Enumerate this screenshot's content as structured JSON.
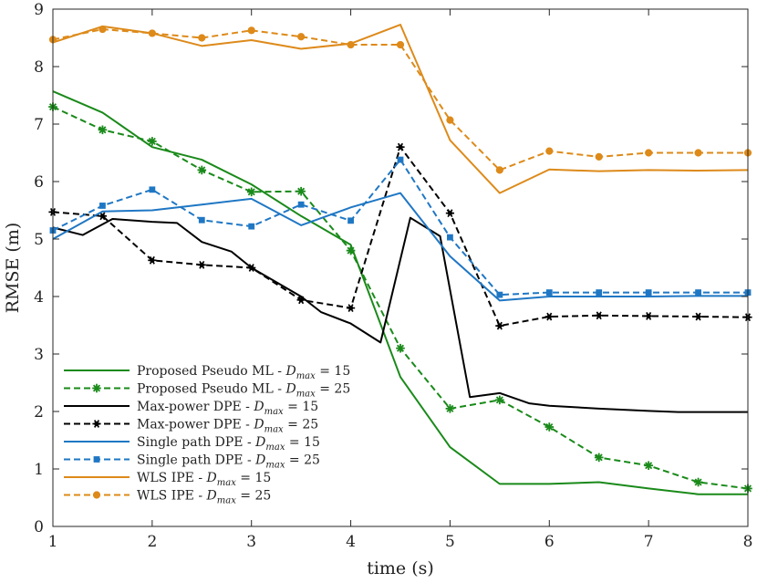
{
  "chart_data": {
    "type": "line",
    "title": "",
    "xlabel": "time (s)",
    "ylabel": "RMSE (m)",
    "xlim": [
      1,
      8
    ],
    "ylim": [
      0,
      9
    ],
    "xticks": [
      "1",
      "2",
      "3",
      "4",
      "5",
      "6",
      "7",
      "8"
    ],
    "yticks": [
      "0",
      "1",
      "2",
      "3",
      "4",
      "5",
      "6",
      "7",
      "8",
      "9"
    ],
    "grid": false,
    "legend_position": "bottom-left",
    "series": [
      {
        "name_prefix": "Proposed Pseudo ML - ",
        "name_suffix": " = 15",
        "dmax_value": "15",
        "color": "#1a8a1a",
        "line_style": "solid",
        "marker": "none",
        "x": [
          1,
          1.5,
          2,
          2.5,
          3,
          3.5,
          4,
          4.5,
          5,
          5.5,
          6,
          6.5,
          7,
          7.5,
          8
        ],
        "y": [
          7.57,
          7.2,
          6.6,
          6.38,
          5.95,
          5.4,
          4.9,
          2.6,
          1.38,
          0.74,
          0.74,
          0.77,
          0.66,
          0.56,
          0.56
        ]
      },
      {
        "name_prefix": "Proposed Pseudo ML - ",
        "name_suffix": " = 25",
        "dmax_value": "25",
        "color": "#1a8a1a",
        "line_style": "dashed",
        "marker": "asterisk",
        "x": [
          1,
          1.5,
          2,
          2.5,
          3,
          3.5,
          4,
          4.5,
          5,
          5.5,
          6,
          6.5,
          7,
          7.5,
          8
        ],
        "y": [
          7.3,
          6.9,
          6.7,
          6.2,
          5.82,
          5.83,
          4.8,
          3.1,
          2.05,
          2.2,
          1.73,
          1.2,
          1.06,
          0.77,
          0.66
        ]
      },
      {
        "name_prefix": "Max-power DPE - ",
        "name_suffix": " = 15",
        "dmax_value": "15",
        "color": "#000000",
        "line_style": "solid",
        "marker": "none",
        "x": [
          1,
          1.3,
          1.6,
          2,
          2.25,
          2.5,
          2.8,
          3,
          3.5,
          3.7,
          4,
          4.3,
          4.6,
          4.9,
          5.2,
          5.5,
          5.8,
          6,
          6.5,
          7,
          7.3,
          7.5,
          8
        ],
        "y": [
          5.2,
          5.07,
          5.35,
          5.3,
          5.28,
          4.95,
          4.78,
          4.5,
          4.0,
          3.73,
          3.53,
          3.2,
          5.37,
          5.05,
          2.25,
          2.32,
          2.14,
          2.1,
          2.05,
          2.01,
          1.99,
          1.99,
          1.99
        ]
      },
      {
        "name_prefix": "Max-power DPE - ",
        "name_suffix": " = 25",
        "dmax_value": "25",
        "color": "#000000",
        "line_style": "dashed",
        "marker": "star",
        "x": [
          1,
          1.5,
          2,
          2.5,
          3,
          3.5,
          4,
          4.5,
          5,
          5.5,
          6,
          6.5,
          7,
          7.5,
          8
        ],
        "y": [
          5.47,
          5.4,
          4.63,
          4.55,
          4.5,
          3.94,
          3.8,
          6.6,
          5.45,
          3.49,
          3.65,
          3.67,
          3.66,
          3.65,
          3.64
        ]
      },
      {
        "name_prefix": "Single path DPE - ",
        "name_suffix": " = 15",
        "dmax_value": "15",
        "color": "#1f77c4",
        "line_style": "solid",
        "marker": "none",
        "x": [
          1,
          1.5,
          2,
          2.5,
          3,
          3.5,
          4,
          4.5,
          5,
          5.5,
          6,
          6.5,
          7,
          7.5,
          8
        ],
        "y": [
          5.0,
          5.48,
          5.5,
          5.6,
          5.7,
          5.24,
          5.55,
          5.8,
          4.7,
          3.93,
          4.0,
          4.0,
          4.0,
          4.01,
          4.01
        ]
      },
      {
        "name_prefix": "Single path DPE - ",
        "name_suffix": " = 25",
        "dmax_value": "25",
        "color": "#1f77c4",
        "line_style": "dashed",
        "marker": "square",
        "x": [
          1,
          1.5,
          2,
          2.5,
          3,
          3.5,
          4,
          4.5,
          5,
          5.5,
          6,
          6.5,
          7,
          7.5,
          8
        ],
        "y": [
          5.15,
          5.58,
          5.86,
          5.33,
          5.22,
          5.6,
          5.32,
          6.38,
          5.03,
          4.03,
          4.07,
          4.07,
          4.07,
          4.07,
          4.07
        ]
      },
      {
        "name_prefix": "WLS IPE - ",
        "name_suffix": " = 15",
        "dmax_value": "15",
        "color": "#dd8a1a",
        "line_style": "solid",
        "marker": "none",
        "x": [
          1,
          1.5,
          2,
          2.5,
          3,
          3.5,
          4,
          4.5,
          5,
          5.5,
          6,
          6.5,
          7,
          7.5,
          8
        ],
        "y": [
          8.42,
          8.7,
          8.58,
          8.36,
          8.46,
          8.31,
          8.4,
          8.73,
          6.72,
          5.8,
          6.21,
          6.18,
          6.2,
          6.19,
          6.2
        ]
      },
      {
        "name_prefix": "WLS IPE - ",
        "name_suffix": " = 25",
        "dmax_value": "25",
        "color": "#dd8a1a",
        "line_style": "dashed",
        "marker": "circle",
        "x": [
          1,
          1.5,
          2,
          2.5,
          3,
          3.5,
          4,
          4.5,
          5,
          5.5,
          6,
          6.5,
          7,
          7.5,
          8
        ],
        "y": [
          8.47,
          8.65,
          8.58,
          8.5,
          8.63,
          8.52,
          8.38,
          8.38,
          7.07,
          6.2,
          6.53,
          6.43,
          6.5,
          6.5,
          6.5
        ]
      }
    ]
  }
}
